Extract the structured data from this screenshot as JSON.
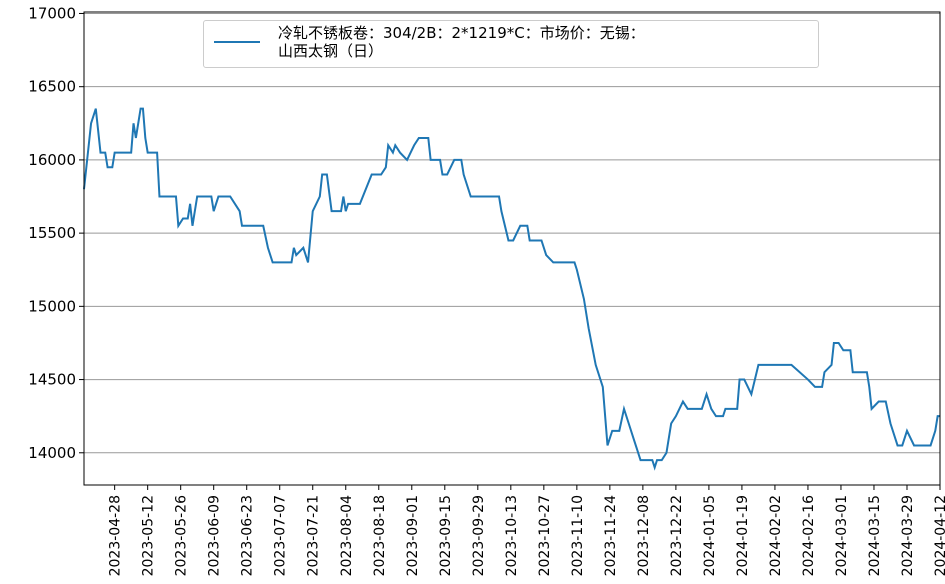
{
  "chart_data": {
    "type": "line",
    "xlim": [
      "2023-04-15",
      "2024-04-12"
    ],
    "xticks": [
      "2023-04-28",
      "2023-05-12",
      "2023-05-26",
      "2023-06-09",
      "2023-06-23",
      "2023-07-07",
      "2023-07-21",
      "2023-08-04",
      "2023-08-18",
      "2023-09-01",
      "2023-09-15",
      "2023-09-29",
      "2023-10-13",
      "2023-10-27",
      "2023-11-10",
      "2023-11-24",
      "2023-12-08",
      "2023-12-22",
      "2024-01-05",
      "2024-01-19",
      "2024-02-02",
      "2024-02-16",
      "2024-03-01",
      "2024-03-15",
      "2024-03-29",
      "2024-04-12"
    ],
    "ylim": [
      13780,
      17010
    ],
    "yticks": [
      14000,
      14500,
      15000,
      15500,
      16000,
      16500,
      17000
    ],
    "grid": true,
    "legend": "upper center",
    "x": [
      "2023-04-15",
      "2023-04-18",
      "2023-04-20",
      "2023-04-22",
      "2023-04-24",
      "2023-04-25",
      "2023-04-27",
      "2023-04-28",
      "2023-05-05",
      "2023-05-06",
      "2023-05-07",
      "2023-05-08",
      "2023-05-09",
      "2023-05-10",
      "2023-05-11",
      "2023-05-12",
      "2023-05-16",
      "2023-05-17",
      "2023-05-24",
      "2023-05-25",
      "2023-05-27",
      "2023-05-29",
      "2023-05-30",
      "2023-05-31",
      "2023-06-02",
      "2023-06-08",
      "2023-06-09",
      "2023-06-11",
      "2023-06-16",
      "2023-06-20",
      "2023-06-21",
      "2023-06-30",
      "2023-07-02",
      "2023-07-04",
      "2023-07-12",
      "2023-07-13",
      "2023-07-14",
      "2023-07-17",
      "2023-07-19",
      "2023-07-21",
      "2023-07-24",
      "2023-07-25",
      "2023-07-27",
      "2023-07-29",
      "2023-08-02",
      "2023-08-03",
      "2023-08-04",
      "2023-08-05",
      "2023-08-10",
      "2023-08-15",
      "2023-08-19",
      "2023-08-21",
      "2023-08-22",
      "2023-08-24",
      "2023-08-25",
      "2023-08-27",
      "2023-08-30",
      "2023-09-02",
      "2023-09-04",
      "2023-09-08",
      "2023-09-09",
      "2023-09-13",
      "2023-09-14",
      "2023-09-16",
      "2023-09-19",
      "2023-09-22",
      "2023-09-23",
      "2023-09-26",
      "2023-10-08",
      "2023-10-09",
      "2023-10-12",
      "2023-10-14",
      "2023-10-17",
      "2023-10-20",
      "2023-10-21",
      "2023-10-26",
      "2023-10-28",
      "2023-10-31",
      "2023-11-09",
      "2023-11-10",
      "2023-11-13",
      "2023-11-15",
      "2023-11-18",
      "2023-11-21",
      "2023-11-23",
      "2023-11-25",
      "2023-11-28",
      "2023-11-30",
      "2023-12-02",
      "2023-12-04",
      "2023-12-07",
      "2023-12-12",
      "2023-12-13",
      "2023-12-14",
      "2023-12-16",
      "2023-12-18",
      "2023-12-20",
      "2023-12-22",
      "2023-12-25",
      "2023-12-27",
      "2024-01-02",
      "2024-01-04",
      "2024-01-06",
      "2024-01-08",
      "2024-01-11",
      "2024-01-12",
      "2024-01-17",
      "2024-01-18",
      "2024-01-20",
      "2024-01-23",
      "2024-01-26",
      "2024-02-09",
      "2024-02-16",
      "2024-02-19",
      "2024-02-22",
      "2024-02-23",
      "2024-02-26",
      "2024-02-27",
      "2024-02-29",
      "2024-03-02",
      "2024-03-05",
      "2024-03-06",
      "2024-03-12",
      "2024-03-13",
      "2024-03-14",
      "2024-03-17",
      "2024-03-20",
      "2024-03-22",
      "2024-03-25",
      "2024-03-27",
      "2024-03-29",
      "2024-04-01",
      "2024-04-08",
      "2024-04-10",
      "2024-04-11",
      "2024-04-12"
    ],
    "series": [
      {
        "name": "冷轧不锈板卷：304/2B：2*1219*C：市场价：无锡：\n山西太钢（日）",
        "color": "#1f77b4",
        "values": [
          15800,
          16250,
          16350,
          16050,
          16050,
          15950,
          15950,
          16050,
          16050,
          16250,
          16150,
          16250,
          16350,
          16350,
          16150,
          16050,
          16050,
          15750,
          15750,
          15550,
          15600,
          15600,
          15700,
          15550,
          15750,
          15750,
          15650,
          15750,
          15750,
          15650,
          15550,
          15550,
          15400,
          15300,
          15300,
          15400,
          15350,
          15400,
          15300,
          15650,
          15750,
          15900,
          15900,
          15650,
          15650,
          15750,
          15650,
          15700,
          15700,
          15900,
          15900,
          15950,
          16100,
          16050,
          16100,
          16050,
          16000,
          16100,
          16150,
          16150,
          16000,
          16000,
          15900,
          15900,
          16000,
          16000,
          15900,
          15750,
          15750,
          15650,
          15450,
          15450,
          15550,
          15550,
          15450,
          15450,
          15350,
          15300,
          15300,
          15250,
          15050,
          14850,
          14600,
          14450,
          14050,
          14150,
          14150,
          14300,
          14200,
          14100,
          13950,
          13950,
          13900,
          13950,
          13950,
          14000,
          14200,
          14250,
          14350,
          14300,
          14300,
          14400,
          14300,
          14250,
          14250,
          14300,
          14300,
          14500,
          14500,
          14400,
          14600,
          14600,
          14500,
          14450,
          14450,
          14550,
          14600,
          14750,
          14750,
          14700,
          14700,
          14550,
          14550,
          14450,
          14300,
          14350,
          14350,
          14200,
          14050,
          14050,
          14150,
          14050,
          14050,
          14150,
          14250,
          14250
        ]
      }
    ]
  }
}
